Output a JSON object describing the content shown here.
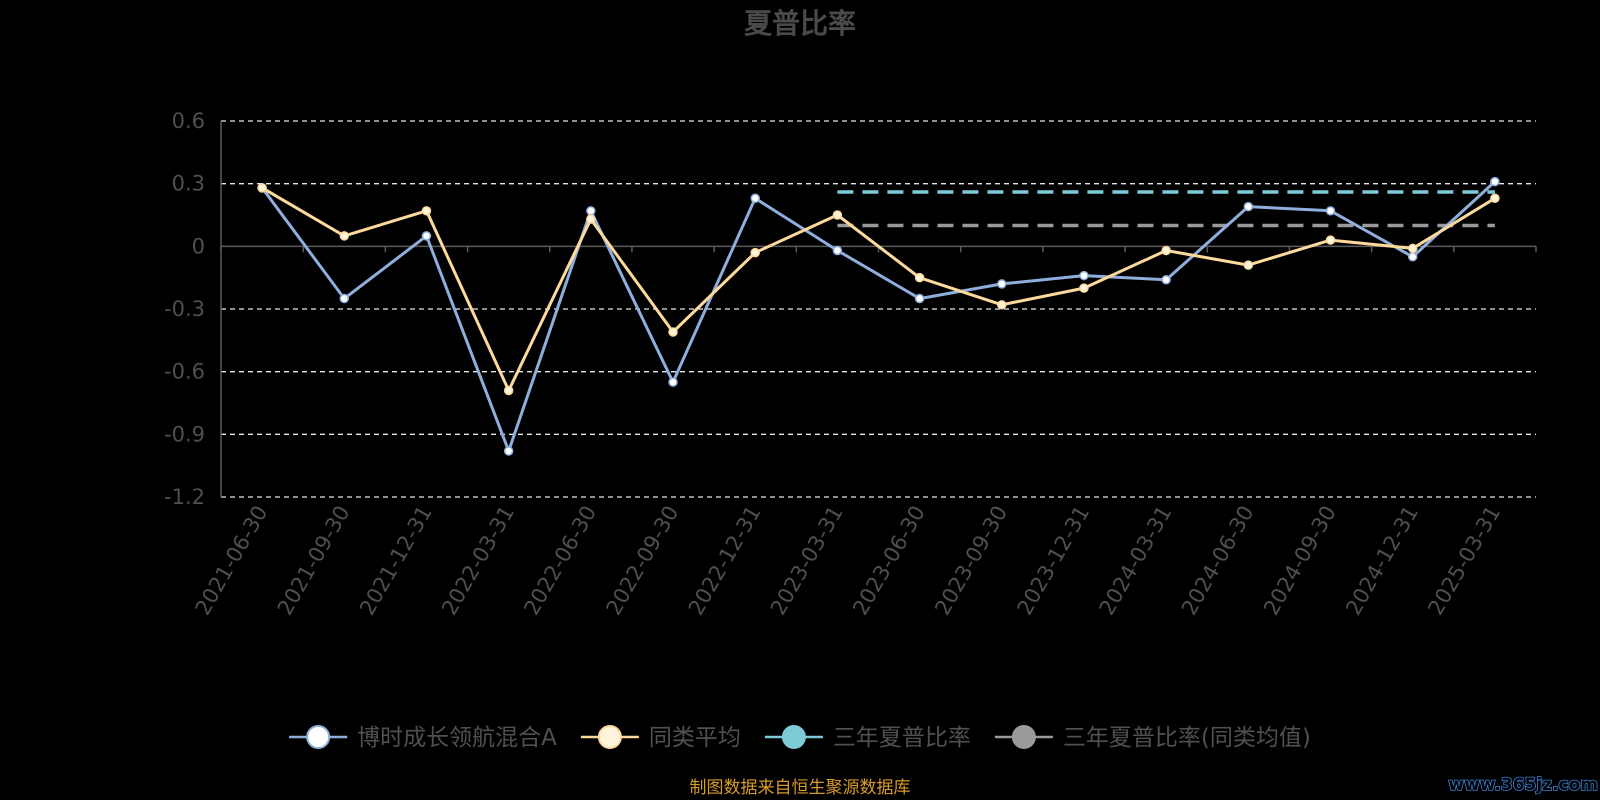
{
  "chart_data": {
    "type": "line",
    "title": "夏普比率",
    "categories": [
      "2021-06-30",
      "2021-09-30",
      "2021-12-31",
      "2022-03-31",
      "2022-06-30",
      "2022-09-30",
      "2022-12-31",
      "2023-03-31",
      "2023-06-30",
      "2023-09-30",
      "2023-12-31",
      "2024-03-31",
      "2024-06-30",
      "2024-09-30",
      "2024-12-31",
      "2025-03-31"
    ],
    "ylim": [
      -1.2,
      0.6
    ],
    "yticks": [
      0.6,
      0.3,
      0,
      -0.3,
      -0.6,
      -0.9,
      -1.2
    ],
    "ytick_labels": [
      "0.6",
      "0.3",
      "0",
      "-0.3",
      "-0.6",
      "-0.9",
      "-1.2"
    ],
    "grid": true,
    "legend_position": "bottom",
    "series": [
      {
        "name": "博时成长领航混合A",
        "color": "#8eaedc",
        "marker_color": "#ffffff",
        "style": "solid",
        "values": [
          0.28,
          -0.25,
          0.05,
          -0.98,
          0.17,
          -0.65,
          0.23,
          -0.02,
          -0.25,
          -0.18,
          -0.14,
          -0.16,
          0.19,
          0.17,
          -0.05,
          0.31
        ]
      },
      {
        "name": "同类平均",
        "color": "#fdd99b",
        "marker_color": "#fff4dc",
        "style": "solid",
        "values": [
          0.28,
          0.05,
          0.17,
          -0.69,
          0.13,
          -0.41,
          -0.03,
          0.15,
          -0.15,
          -0.28,
          -0.2,
          -0.02,
          -0.09,
          0.03,
          -0.01,
          0.23
        ]
      },
      {
        "name": "三年夏普比率",
        "color": "#7ecbd8",
        "marker_color": "#7ecbd8",
        "style": "dashed",
        "start_category": "2023-03-31",
        "end_category": "2025-03-31",
        "value": 0.26
      },
      {
        "name": "三年夏普比率(同类均值)",
        "color": "#9a9a9a",
        "marker_color": "#9a9a9a",
        "style": "dashed",
        "start_category": "2023-03-31",
        "end_category": "2025-03-31",
        "value": 0.1
      }
    ]
  },
  "source_note": "制图数据来自恒生聚源数据库",
  "watermark": "www.365jz.com"
}
